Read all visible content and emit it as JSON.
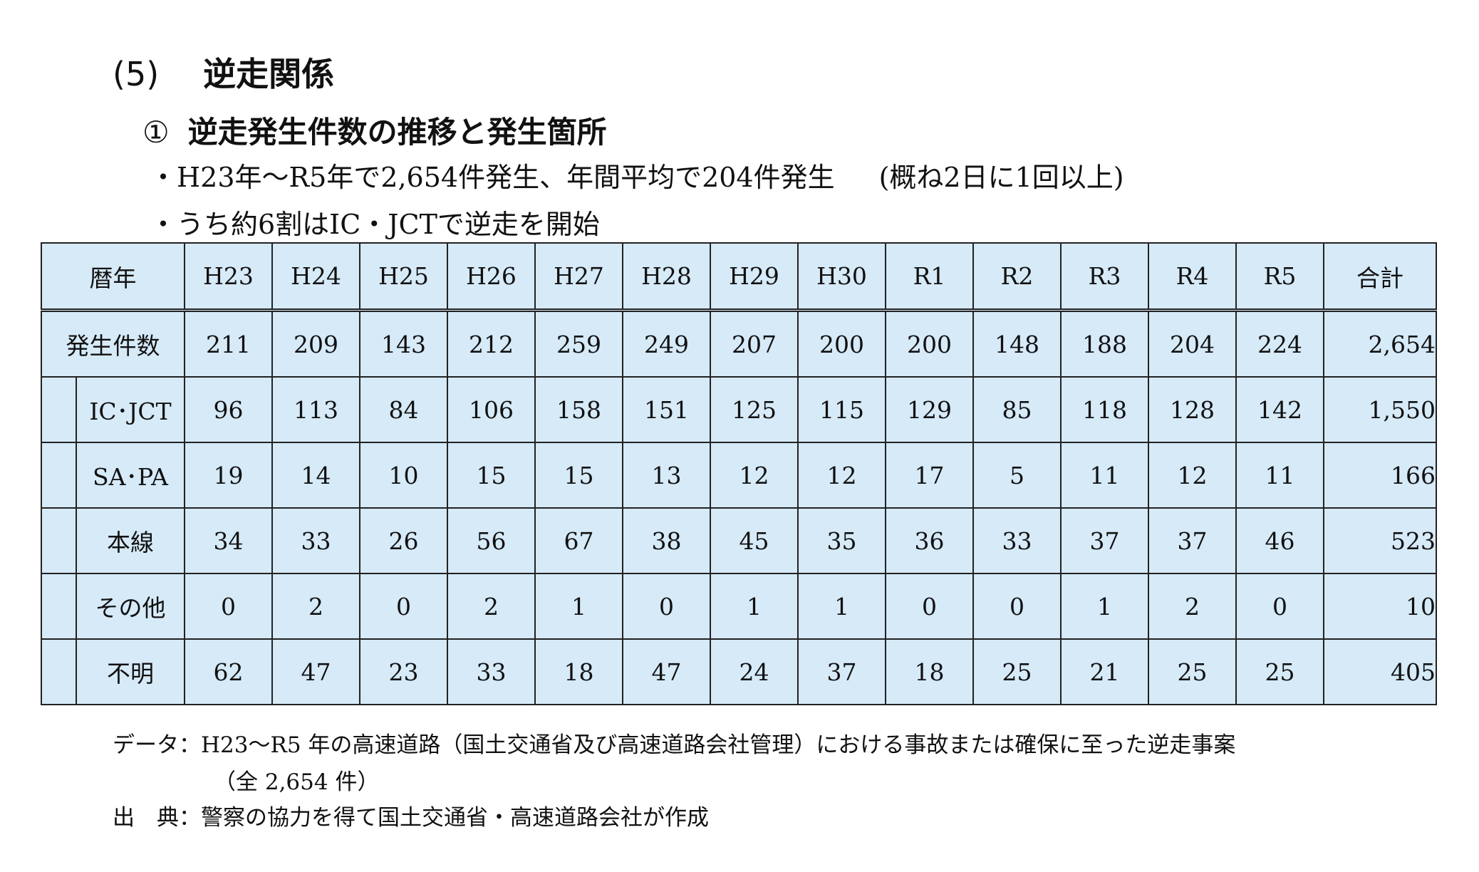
{
  "section": {
    "number": "(5)",
    "title": "逆走関係"
  },
  "subsection": {
    "mark": "①",
    "title": "逆走発生件数の推移と発生箇所"
  },
  "bullets": {
    "b1": "・H23年～R5年で2,654件発生、年間平均で204件発生",
    "b1_note": "(概ね2日に1回以上)",
    "b2": "・うち約6割はIC・JCTで逆走を開始"
  },
  "table": {
    "header": {
      "label": "暦年",
      "years": [
        "H23",
        "H24",
        "H25",
        "H26",
        "H27",
        "H28",
        "H29",
        "H30",
        "R1",
        "R2",
        "R3",
        "R4",
        "R5"
      ],
      "total": "合計"
    },
    "total_row": {
      "label": "発生件数",
      "values": [
        "211",
        "209",
        "143",
        "212",
        "259",
        "249",
        "207",
        "200",
        "200",
        "148",
        "188",
        "204",
        "224"
      ],
      "total": "2,654"
    },
    "rows": [
      {
        "label": "IC･JCT",
        "values": [
          "96",
          "113",
          "84",
          "106",
          "158",
          "151",
          "125",
          "115",
          "129",
          "85",
          "118",
          "128",
          "142"
        ],
        "total": "1,550"
      },
      {
        "label": "SA･PA",
        "values": [
          "19",
          "14",
          "10",
          "15",
          "15",
          "13",
          "12",
          "12",
          "17",
          "5",
          "11",
          "12",
          "11"
        ],
        "total": "166"
      },
      {
        "label": "本線",
        "values": [
          "34",
          "33",
          "26",
          "56",
          "67",
          "38",
          "45",
          "35",
          "36",
          "33",
          "37",
          "37",
          "46"
        ],
        "total": "523"
      },
      {
        "label": "その他",
        "values": [
          "0",
          "2",
          "0",
          "2",
          "1",
          "0",
          "1",
          "1",
          "0",
          "0",
          "1",
          "2",
          "0"
        ],
        "total": "10"
      },
      {
        "label": "不明",
        "values": [
          "62",
          "47",
          "23",
          "33",
          "18",
          "47",
          "24",
          "37",
          "18",
          "25",
          "21",
          "25",
          "25"
        ],
        "total": "405"
      }
    ]
  },
  "footnotes": {
    "data_line": "データ：H23～R5 年の高速道路（国土交通省及び高速道路会社管理）における事故または確保に至った逆走事案",
    "data_line2": "（全 2,654 件）",
    "source_line": "出　典：警察の協力を得て国土交通省・高速道路会社が作成"
  }
}
